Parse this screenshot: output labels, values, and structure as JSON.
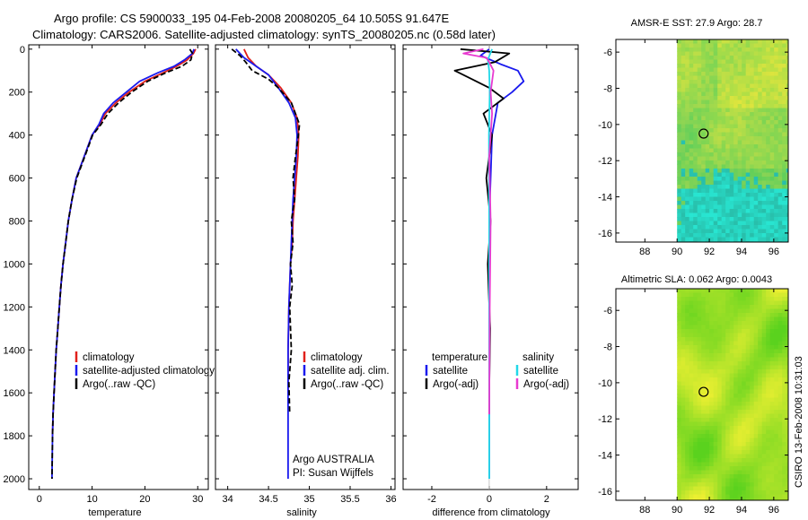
{
  "header": {
    "line1": "Argo profile: CS 5900033_195 04-Feb-2008 20080205_64 10.505S 91.647E",
    "line2": "Climatology: CARS2006. Satellite-adjusted climatology: synTS_20080205.nc (0.58d later)"
  },
  "side_label": "CSIRO 13-Feb-2008 10:31:03",
  "colors": {
    "climatology": "#e0201b",
    "satellite": "#1a1aee",
    "argo": "#000000",
    "sal_satellite": "#22d8e8",
    "sal_argo": "#e83ad0"
  },
  "chart_data": [
    {
      "type": "line",
      "id": "temperature",
      "xlabel": "temperature",
      "ylabel": "",
      "xlim": [
        -2,
        32
      ],
      "ylim": [
        2050,
        -20
      ],
      "xticks": [
        0,
        10,
        20,
        30
      ],
      "yticks": [
        0,
        200,
        400,
        600,
        800,
        1000,
        1200,
        1400,
        1600,
        1800,
        2000
      ],
      "legend": [
        "climatology",
        "satellite-adjusted climatology",
        "Argo(..raw -QC)"
      ],
      "series": [
        {
          "name": "climatology",
          "color": "#e0201b",
          "x": [
            29.6,
            29.2,
            28.0,
            26.0,
            23.5,
            20.0,
            17.0,
            14.5,
            12.5,
            11.5,
            10.0,
            8.5,
            7.0,
            6.2,
            5.5,
            5.0,
            4.5,
            4.1,
            3.8,
            3.5,
            3.2,
            3.0,
            2.8,
            2.6,
            2.5
          ],
          "y": [
            0,
            20,
            50,
            80,
            110,
            150,
            200,
            250,
            300,
            350,
            400,
            500,
            600,
            700,
            800,
            900,
            1000,
            1100,
            1200,
            1300,
            1400,
            1500,
            1600,
            1700,
            1800
          ]
        },
        {
          "name": "satellite-adjusted climatology",
          "color": "#1a1aee",
          "x": [
            29.3,
            29.0,
            27.5,
            25.5,
            22.5,
            19.0,
            16.5,
            14.0,
            12.2,
            11.3,
            10.0,
            8.5,
            7.0,
            6.2,
            5.5,
            5.0,
            4.5,
            4.1,
            3.8,
            3.5,
            3.2,
            3.0,
            2.8,
            2.6,
            2.5,
            2.4
          ],
          "y": [
            0,
            20,
            50,
            80,
            110,
            150,
            200,
            250,
            300,
            350,
            400,
            500,
            600,
            700,
            800,
            900,
            1000,
            1100,
            1200,
            1300,
            1400,
            1500,
            1600,
            1700,
            1800,
            2000
          ]
        },
        {
          "name": "Argo(..raw -QC)",
          "color": "#000000",
          "x": [
            28.5,
            29.0,
            28.7,
            27.0,
            24.0,
            20.5,
            17.5,
            15.0,
            13.0,
            11.7,
            10.1,
            8.6,
            7.1,
            6.2,
            5.5,
            5.0,
            4.5,
            4.1,
            3.8,
            3.5,
            3.2,
            3.0,
            2.8,
            2.6,
            2.5,
            2.4
          ],
          "y": [
            0,
            20,
            50,
            80,
            110,
            150,
            200,
            250,
            300,
            350,
            400,
            500,
            600,
            700,
            800,
            900,
            1000,
            1100,
            1200,
            1300,
            1400,
            1500,
            1600,
            1700,
            1800,
            2000
          ]
        }
      ]
    },
    {
      "type": "line",
      "id": "salinity",
      "xlabel": "salinity",
      "ylabel": "",
      "xlim": [
        33.85,
        36.05
      ],
      "ylim": [
        2050,
        -20
      ],
      "xticks": [
        34,
        34.5,
        35,
        35.5,
        36
      ],
      "legend": [
        "climatology",
        "satellite adj. clim.",
        "Argo(..raw -QC)"
      ],
      "annotation": [
        "Argo AUSTRALIA",
        "PI: Susan Wijffels"
      ],
      "series": [
        {
          "name": "climatology",
          "color": "#e0201b",
          "x": [
            34.2,
            34.25,
            34.35,
            34.5,
            34.65,
            34.78,
            34.85,
            34.87,
            34.86,
            34.84,
            34.82,
            34.8,
            34.79,
            34.77,
            34.76,
            34.75,
            34.74,
            34.74
          ],
          "y": [
            0,
            40,
            80,
            120,
            180,
            250,
            320,
            400,
            500,
            600,
            700,
            800,
            900,
            1000,
            1100,
            1200,
            1400,
            1600
          ]
        },
        {
          "name": "satellite adj. clim.",
          "color": "#1a1aee",
          "x": [
            34.1,
            34.2,
            34.35,
            34.5,
            34.62,
            34.75,
            34.83,
            34.85,
            34.84,
            34.82,
            34.8,
            34.79,
            34.78,
            34.77,
            34.76,
            34.75,
            34.74,
            34.74,
            34.74
          ],
          "y": [
            0,
            40,
            80,
            120,
            180,
            250,
            320,
            400,
            500,
            600,
            700,
            800,
            900,
            1000,
            1100,
            1200,
            1400,
            1700,
            2000
          ]
        },
        {
          "name": "Argo(..raw -QC)",
          "color": "#000000",
          "x": [
            34.05,
            34.15,
            34.22,
            34.3,
            34.5,
            34.62,
            34.78,
            34.88,
            34.86,
            34.83,
            34.8,
            34.82,
            34.78,
            34.8,
            34.77,
            34.79,
            34.76,
            34.78,
            34.75,
            34.76
          ],
          "y": [
            0,
            30,
            60,
            100,
            140,
            180,
            250,
            350,
            420,
            500,
            600,
            700,
            800,
            900,
            1000,
            1100,
            1200,
            1400,
            1550,
            1700
          ]
        }
      ]
    },
    {
      "type": "line",
      "id": "difference",
      "xlabel": "difference from climatology",
      "ylabel": "",
      "xlim": [
        -3,
        3.1
      ],
      "ylim": [
        2050,
        -20
      ],
      "xticks": [
        -2,
        0,
        2
      ],
      "legend_temperature_heading": "temperature",
      "legend_salinity_heading": "salinity",
      "legend": [
        "satellite",
        "Argo(-adj)",
        "satellite",
        "Argo(-adj)"
      ],
      "series": [
        {
          "name": "temperature satellite",
          "color": "#1a1aee",
          "x": [
            0.0,
            -0.3,
            0.4,
            1.0,
            1.2,
            0.8,
            0.3,
            0.1,
            0.0,
            0.0,
            0.0
          ],
          "y": [
            0,
            30,
            70,
            100,
            150,
            200,
            250,
            400,
            800,
            1200,
            2000
          ]
        },
        {
          "name": "temperature Argo(-adj)",
          "color": "#000000",
          "x": [
            -1.0,
            0.7,
            0.2,
            -1.2,
            -0.6,
            0.0,
            0.5,
            -0.2,
            0.1,
            -0.1,
            0.05,
            -0.05,
            0.03,
            0.0,
            0.0
          ],
          "y": [
            0,
            20,
            60,
            100,
            140,
            180,
            230,
            300,
            400,
            600,
            800,
            1000,
            1300,
            1600,
            1700
          ]
        },
        {
          "name": "salinity satellite",
          "color": "#22d8e8",
          "x": [
            0.1,
            -0.05,
            0.0,
            0.02,
            -0.01,
            0.0,
            0.0,
            0.0
          ],
          "y": [
            0,
            50,
            100,
            200,
            400,
            800,
            1400,
            2000
          ]
        },
        {
          "name": "salinity Argo(-adj)",
          "color": "#e83ad0",
          "x": [
            -0.2,
            -0.9,
            -0.1,
            0.0,
            0.15,
            0.05,
            0.1,
            0.0,
            0.05,
            0.02,
            0.0
          ],
          "y": [
            0,
            20,
            40,
            60,
            100,
            200,
            300,
            500,
            800,
            1200,
            1700
          ]
        }
      ]
    },
    {
      "type": "heatmap",
      "id": "sst_map",
      "title": "AMSR-E SST: 27.9  Argo: 28.7",
      "xlim": [
        86.2,
        96.9
      ],
      "ylim": [
        -16.5,
        -5.3
      ],
      "xticks": [
        88,
        90,
        92,
        94,
        96
      ],
      "yticks": [
        -6,
        -8,
        -10,
        -12,
        -14,
        -16
      ],
      "data_xmin": 90,
      "marker": {
        "lon": 91.647,
        "lat": -10.505
      }
    },
    {
      "type": "heatmap",
      "id": "sla_map",
      "title": "Altimetric SLA: 0.062  Argo: 0.0043",
      "xlim": [
        86.2,
        96.9
      ],
      "ylim": [
        -16.5,
        -4.8
      ],
      "xticks": [
        88,
        90,
        92,
        94,
        96
      ],
      "yticks": [
        -6,
        -8,
        -10,
        -12,
        -14,
        -16
      ],
      "data_xmin": 90,
      "marker": {
        "lon": 91.647,
        "lat": -10.505
      }
    }
  ]
}
